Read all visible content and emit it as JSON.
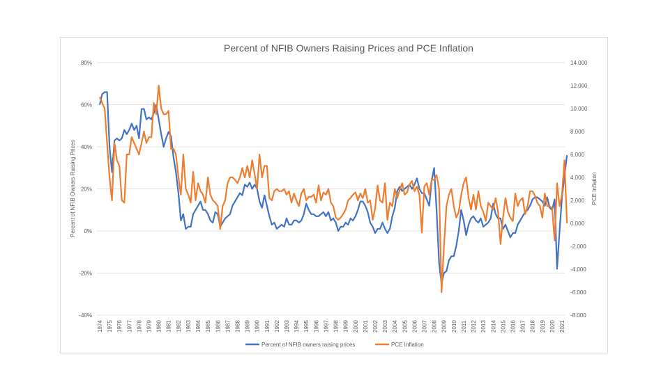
{
  "chart_data": {
    "type": "line",
    "title": "Percent of NFIB Owners Raising Prices and PCE Inflation",
    "ylabel_left": "Percent of NFIB Owners Raising Prices",
    "ylabel_right": "PCE Inflation",
    "xlabel": "",
    "ylim_left": [
      -40,
      80
    ],
    "ylim_right": [
      -8,
      14
    ],
    "left_ticks": [
      "80%",
      "60%",
      "40%",
      "20%",
      "0%",
      "-20%",
      "-40%"
    ],
    "left_tick_values": [
      80,
      60,
      40,
      20,
      0,
      -20,
      -40
    ],
    "right_ticks": [
      "14.000",
      "12.000",
      "10.000",
      "8.000",
      "6.000",
      "4.000",
      "2.000",
      "0.000",
      "-2.000",
      "-4.000",
      "-6.000",
      "-8.000"
    ],
    "right_tick_values": [
      14,
      12,
      10,
      8,
      6,
      4,
      2,
      0,
      -2,
      -4,
      -6,
      -8
    ],
    "x_ticks": [
      "1974",
      "1975",
      "1976",
      "1977",
      "1978",
      "1979",
      "1980",
      "1981",
      "1982",
      "1983",
      "1984",
      "1985",
      "1986",
      "1987",
      "1988",
      "1989",
      "1990",
      "1991",
      "1992",
      "1993",
      "1994",
      "1995",
      "1996",
      "1997",
      "1998",
      "1999",
      "2000",
      "2001",
      "2002",
      "2003",
      "2004",
      "2005",
      "2006",
      "2007",
      "2008",
      "2009",
      "2010",
      "2011",
      "2012",
      "2013",
      "2014",
      "2015",
      "2016",
      "2017",
      "2018",
      "2019",
      "2020",
      "2021"
    ],
    "x_start": 1974,
    "x_step": 0.25,
    "grid": true,
    "legend_position": "bottom",
    "series": [
      {
        "name": "Percent of NFIB owners raising prices",
        "axis": "left",
        "color": "#4472c4",
        "values": [
          60,
          65,
          66,
          66,
          40,
          28,
          43,
          44,
          43,
          44,
          48,
          46,
          48,
          51,
          48,
          50,
          44,
          58,
          58,
          53,
          54,
          53,
          56,
          60,
          53,
          46,
          40,
          44,
          47,
          45,
          35,
          28,
          18,
          5,
          8,
          1,
          2,
          2,
          8,
          10,
          12,
          14,
          10,
          10,
          8,
          5,
          4,
          9,
          8,
          2,
          4,
          6,
          7,
          8,
          12,
          14,
          16,
          18,
          17,
          22,
          21,
          23,
          20,
          22,
          20,
          14,
          11,
          17,
          12,
          7,
          3,
          4,
          1,
          2,
          3,
          2,
          6,
          3,
          3,
          5,
          5,
          4,
          5,
          8,
          13,
          10,
          8,
          8,
          7,
          7,
          8,
          9,
          7,
          9,
          5,
          6,
          4,
          0,
          2,
          2,
          4,
          3,
          6,
          5,
          7,
          10,
          14,
          14,
          12,
          9,
          4,
          2,
          -1,
          1,
          1,
          4,
          1,
          -1,
          1,
          7,
          11,
          19,
          21,
          19,
          20,
          21,
          22,
          20,
          22,
          25,
          20,
          18,
          18,
          15,
          12,
          24,
          30,
          10,
          -15,
          -25,
          -20,
          -19,
          -14,
          -12,
          -12,
          -7,
          0,
          10,
          5,
          -2,
          3,
          6,
          7,
          5,
          4,
          6,
          2,
          3,
          4,
          6,
          13,
          8,
          6,
          6,
          1,
          3,
          0,
          -3,
          -1,
          -1,
          3,
          5,
          7,
          9,
          10,
          12,
          15,
          16,
          16,
          15,
          14,
          12,
          16,
          11,
          10,
          15,
          -18,
          0,
          16,
          26,
          36
        ]
      },
      {
        "name": "PCE Inflation",
        "axis": "right",
        "color": "#ed7d31",
        "values": [
          11,
          10.5,
          10,
          7,
          4,
          2,
          7,
          5.5,
          5,
          2,
          1.8,
          6,
          6,
          7.5,
          7,
          6.5,
          6,
          7,
          8,
          7,
          7.5,
          7.5,
          10.5,
          9.5,
          12,
          10,
          9.5,
          9.5,
          9.8,
          6.5,
          6.5,
          6,
          4,
          2.5,
          6,
          3,
          2.5,
          1.8,
          4.5,
          2,
          3.5,
          2.8,
          2.5,
          1.8,
          4,
          2.5,
          2,
          1.8,
          1.5,
          -0.5,
          1.5,
          2,
          3.5,
          4,
          4,
          3.8,
          3.5,
          4,
          4.8,
          4,
          5,
          4,
          5.5,
          4.3,
          3,
          6,
          4,
          5,
          5,
          2.2,
          2,
          2.8,
          3,
          2.8,
          2.8,
          3,
          2.5,
          2.8,
          1.8,
          2.6,
          2,
          1.5,
          2.6,
          3,
          2,
          2.3,
          2.3,
          2.5,
          1.8,
          3.3,
          2,
          2.7,
          2.5,
          3,
          1.8,
          1.5,
          0.5,
          0.3,
          0.5,
          0.8,
          1.2,
          2,
          2.2,
          2.5,
          2.7,
          2,
          2.6,
          2.2,
          3,
          1.8,
          2,
          0.3,
          1.3,
          3.3,
          2,
          1.8,
          3.5,
          0.3,
          1.8,
          1.5,
          3,
          2.2,
          2.9,
          3.5,
          2.5,
          2.7,
          3.4,
          3.7,
          2.8,
          3.2,
          2.5,
          -0.8,
          3.2,
          3.5,
          2.5,
          3.8,
          3.8,
          4.2,
          3,
          -6,
          -2,
          1.5,
          2.5,
          3,
          1.5,
          0.5,
          1,
          2.5,
          3.5,
          4,
          2.2,
          1.2,
          2.5,
          1.2,
          2.8,
          1.5,
          1,
          0.2,
          1.8,
          1.5,
          1.2,
          2.2,
          1,
          -1.8,
          0.5,
          2.2,
          1,
          0.5,
          0.2,
          2.6,
          1.5,
          2,
          2.2,
          0.8,
          1.5,
          2.8,
          2.8,
          2.4,
          1.8,
          1.5,
          0.5,
          2.6,
          1.5,
          1.5,
          1.3,
          -1.5,
          3.5,
          1.5,
          2.5,
          5.5,
          0
        ]
      }
    ]
  }
}
